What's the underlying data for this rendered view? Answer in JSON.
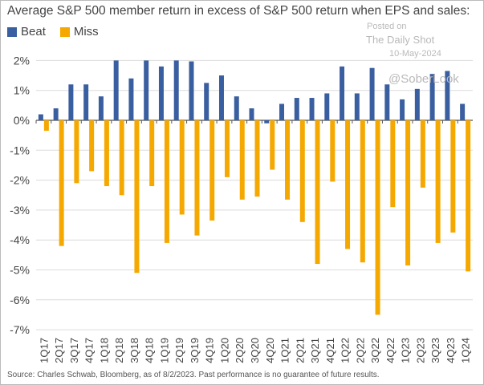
{
  "watermark": {
    "posted": "Posted on",
    "brand": "The Daily Shot",
    "date": "10-May-2024",
    "handle": "@SoberLook"
  },
  "source": "Source: Charles Schwab, Bloomberg, as of 8/2/2023.  Past performance is no guarantee of future results.",
  "colors": {
    "beat": "#3a5fa0",
    "miss": "#f5a800",
    "grid": "#dcdcdc"
  },
  "chart_data": {
    "type": "bar",
    "title": "Average S&P 500 member return in excess of S&P 500 return when EPS and sales:",
    "xlabel": "",
    "ylabel": "",
    "ylim": [
      -7,
      2
    ],
    "yticks": [
      2,
      1,
      0,
      -1,
      -2,
      -3,
      -4,
      -5,
      -6,
      -7
    ],
    "ytick_labels": [
      "2%",
      "1%",
      "0%",
      "-1%",
      "-2%",
      "-3%",
      "-4%",
      "-5%",
      "-6%",
      "-7%"
    ],
    "grid": true,
    "legend": "top-left",
    "categories": [
      "1Q17",
      "2Q17",
      "3Q17",
      "4Q17",
      "1Q18",
      "2Q18",
      "3Q18",
      "4Q18",
      "1Q19",
      "2Q19",
      "3Q19",
      "4Q19",
      "1Q20",
      "2Q20",
      "3Q20",
      "4Q20",
      "1Q21",
      "2Q21",
      "3Q21",
      "4Q21",
      "1Q22",
      "2Q22",
      "3Q22",
      "4Q22",
      "1Q23",
      "2Q23",
      "3Q23",
      "4Q23",
      "1Q24"
    ],
    "series": [
      {
        "name": "Beat",
        "values": [
          0.2,
          0.4,
          1.2,
          1.2,
          0.8,
          2.0,
          1.4,
          2.0,
          1.8,
          2.0,
          1.97,
          1.25,
          1.5,
          0.8,
          0.4,
          -0.1,
          0.55,
          0.75,
          0.75,
          0.9,
          1.8,
          0.9,
          1.75,
          1.2,
          0.7,
          1.05,
          1.55,
          1.65,
          0.55
        ]
      },
      {
        "name": "Miss",
        "values": [
          -0.35,
          -4.2,
          -2.1,
          -1.7,
          -2.2,
          -2.5,
          -5.1,
          -2.2,
          -4.1,
          -3.15,
          -3.85,
          -3.35,
          -1.9,
          -2.65,
          -2.55,
          -1.65,
          -2.65,
          -3.4,
          -4.8,
          -2.05,
          -4.3,
          -4.75,
          -6.5,
          -2.9,
          -4.85,
          -2.25,
          -4.1,
          -3.75,
          -5.05
        ]
      }
    ]
  }
}
